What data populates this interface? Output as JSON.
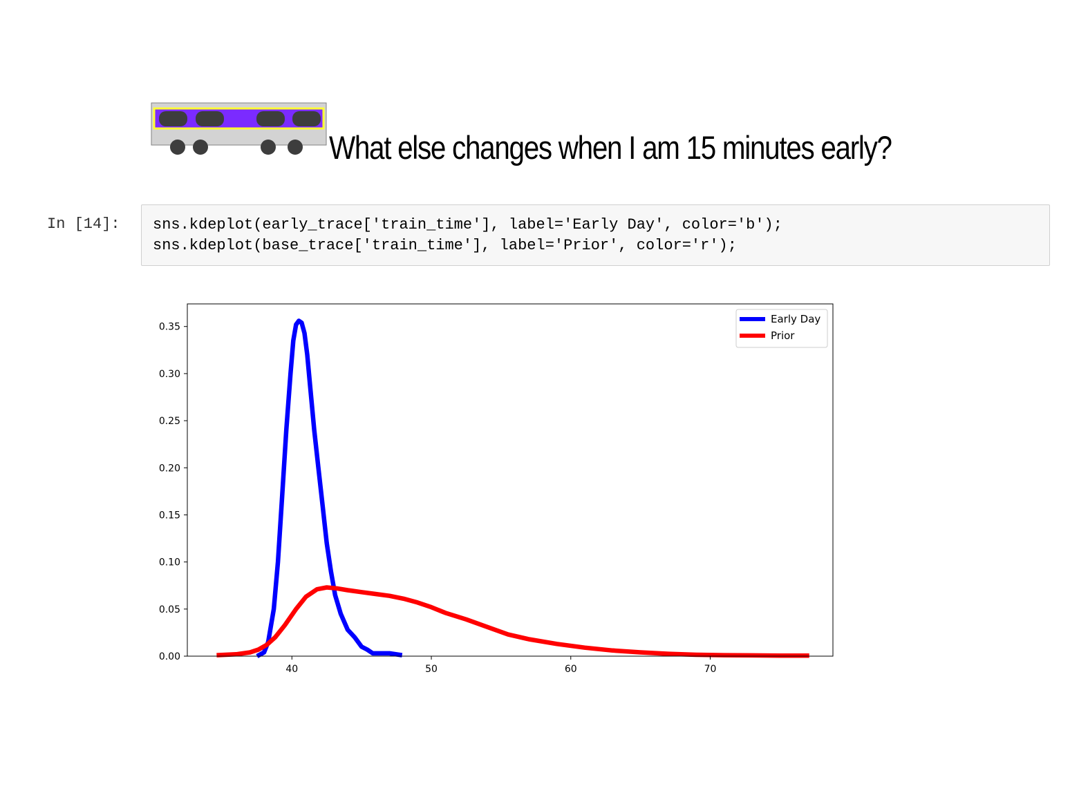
{
  "heading": {
    "text": "What else changes when I am 15 minutes early?",
    "icon": "train-car-icon"
  },
  "cell": {
    "prompt": "In [14]:",
    "code_lines": [
      "sns.kdeplot(early_trace['train_time'], label='Early Day', color='b');",
      "sns.kdeplot(base_trace['train_time'], label='Prior', color='r');"
    ]
  },
  "chart_data": {
    "type": "line",
    "xlabel": "",
    "ylabel": "",
    "xlim": [
      32.5,
      78.8
    ],
    "ylim": [
      0,
      0.374
    ],
    "x_ticks": [
      40,
      50,
      60,
      70
    ],
    "y_ticks": [
      0.0,
      0.05,
      0.1,
      0.15,
      0.2,
      0.25,
      0.3,
      0.35
    ],
    "x_tick_labels": [
      "40",
      "50",
      "60",
      "70"
    ],
    "y_tick_labels": [
      "0.00",
      "0.05",
      "0.10",
      "0.15",
      "0.20",
      "0.25",
      "0.30",
      "0.35"
    ],
    "grid": false,
    "legend": "top-right",
    "series": [
      {
        "name": "Early Day",
        "color": "#0000ff",
        "x": [
          37.5,
          38.0,
          38.3,
          38.7,
          39.0,
          39.3,
          39.6,
          39.9,
          40.1,
          40.3,
          40.5,
          40.7,
          40.9,
          41.1,
          41.3,
          41.6,
          41.9,
          42.2,
          42.5,
          42.8,
          43.1,
          43.5,
          44.0,
          44.5,
          45.0,
          45.4,
          45.8,
          46.2,
          47.0,
          47.9
        ],
        "y": [
          0.0,
          0.004,
          0.015,
          0.05,
          0.1,
          0.17,
          0.24,
          0.3,
          0.335,
          0.352,
          0.356,
          0.354,
          0.343,
          0.32,
          0.288,
          0.24,
          0.2,
          0.16,
          0.12,
          0.09,
          0.065,
          0.045,
          0.028,
          0.02,
          0.01,
          0.007,
          0.003,
          0.003,
          0.003,
          0.001
        ]
      },
      {
        "name": "Prior",
        "color": "#ff0000",
        "x": [
          34.6,
          36.0,
          37.0,
          37.6,
          38.2,
          38.8,
          39.5,
          40.3,
          41.0,
          41.8,
          42.5,
          43.2,
          44.0,
          45.0,
          46.0,
          47.0,
          48.0,
          49.0,
          50.0,
          51.0,
          52.5,
          54.0,
          55.5,
          57.0,
          59.0,
          61.0,
          63.0,
          65.0,
          67.0,
          69.0,
          71.0,
          73.0,
          75.0,
          77.1
        ],
        "y": [
          0.001,
          0.002,
          0.004,
          0.007,
          0.012,
          0.02,
          0.033,
          0.05,
          0.063,
          0.071,
          0.073,
          0.072,
          0.07,
          0.068,
          0.066,
          0.064,
          0.061,
          0.057,
          0.052,
          0.046,
          0.039,
          0.031,
          0.023,
          0.018,
          0.013,
          0.009,
          0.006,
          0.004,
          0.0025,
          0.0015,
          0.001,
          0.0008,
          0.0006,
          0.0005
        ]
      }
    ]
  }
}
